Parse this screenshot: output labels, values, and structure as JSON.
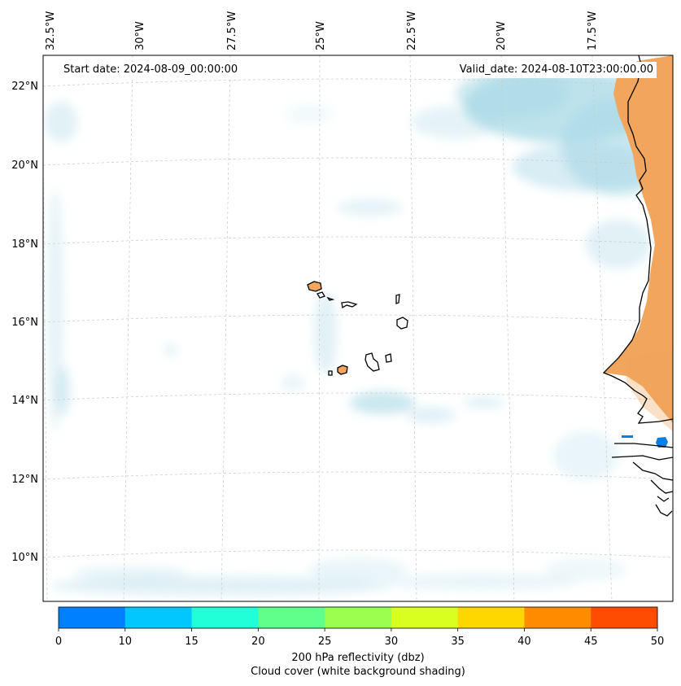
{
  "map": {
    "start_date_text": "Start date: 2024-08-09_00:00:00",
    "valid_date_text": "Valid_date: 2024-08-10T23:00:00.00",
    "longitude_labels": [
      "32.5°W",
      "30°W",
      "27.5°W",
      "25°W",
      "22.5°W",
      "20°W",
      "17.5°W"
    ],
    "latitude_labels": [
      "22°N",
      "20°N",
      "18°N",
      "16°N",
      "14°N",
      "12°N",
      "10°N"
    ],
    "extent": {
      "lon_min": -33.0,
      "lon_max": -16.0,
      "lat_min": 9.0,
      "lat_max": 22.8
    },
    "colors": {
      "land_shading": "#f2a55c",
      "cloud_shading": "#a8d8e6",
      "reflectivity_cell": "#0a7ee8",
      "coastline": "#000000",
      "gridline": "#c8c8c8"
    }
  },
  "colorbar": {
    "bins": [
      {
        "from": 0,
        "to": 10,
        "color": "#0080ff"
      },
      {
        "from": 10,
        "to": 15,
        "color": "#00c8ff"
      },
      {
        "from": 15,
        "to": 20,
        "color": "#20ffd8"
      },
      {
        "from": 20,
        "to": 25,
        "color": "#60ff8c"
      },
      {
        "from": 25,
        "to": 30,
        "color": "#9cff50"
      },
      {
        "from": 30,
        "to": 35,
        "color": "#d8ff20"
      },
      {
        "from": 35,
        "to": 40,
        "color": "#ffd700"
      },
      {
        "from": 40,
        "to": 45,
        "color": "#ff8c00"
      },
      {
        "from": 45,
        "to": 50,
        "color": "#ff4d00"
      }
    ],
    "tick_labels": [
      "0",
      "10",
      "15",
      "20",
      "25",
      "30",
      "35",
      "40",
      "45",
      "50"
    ],
    "label_line1": "200 hPa reflectivity (dbz)",
    "label_line2": "Cloud cover (white background shading)"
  }
}
